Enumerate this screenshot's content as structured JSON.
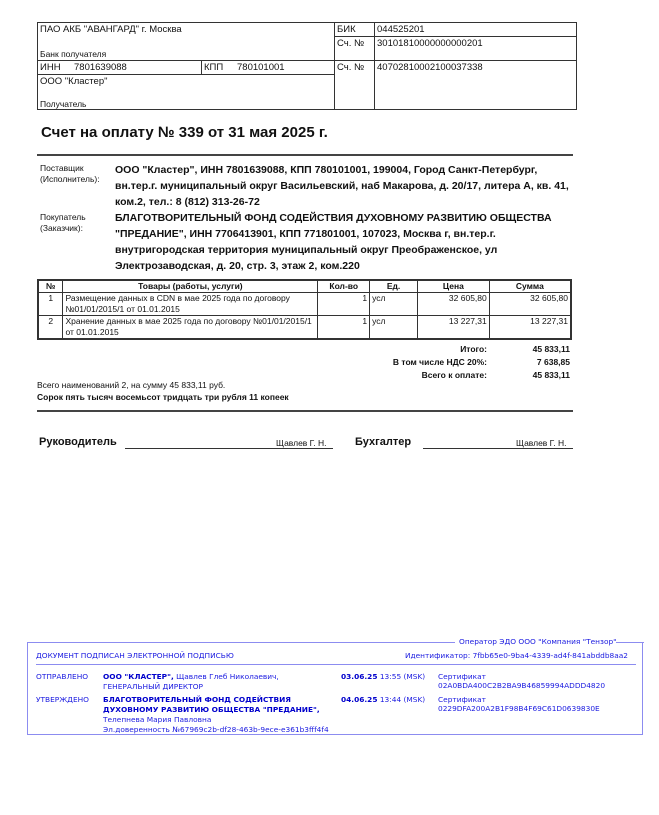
{
  "bank": {
    "bank_name": "ПАО АКБ \"АВАНГАРД\" г. Москва",
    "bank_label": "Банк получателя",
    "bik_label": "БИК",
    "bik": "044525201",
    "corr_label": "Сч. №",
    "corr_account": "30101810000000000201",
    "inn_label": "ИНН",
    "inn": "7801639088",
    "kpp_label": "КПП",
    "kpp": "780101001",
    "acc_label": "Сч. №",
    "account": "40702810002100037338",
    "recipient_name": "ООО \"Кластер\"",
    "recipient_label": "Получатель"
  },
  "title": "Счет на оплату № 339 от 31 мая 2025 г.",
  "supplier": {
    "label": "Поставщик (Исполнитель):",
    "text": "ООО \"Кластер\", ИНН 7801639088, КПП 780101001, 199004, Город Санкт-Петербург, вн.тер.г. муниципальный округ Васильевский, наб Макарова, д. 20/17, литера А, кв. 41, ком.2, тел.: 8 (812) 313-26-72"
  },
  "buyer": {
    "label": "Покупатель (Заказчик):",
    "text": "БЛАГОТВОРИТЕЛЬНЫЙ ФОНД СОДЕЙСТВИЯ ДУХОВНОМУ РАЗВИТИЮ ОБЩЕСТВА \"ПРЕДАНИЕ\", ИНН 7706413901, КПП 771801001, 107023, Москва г, вн.тер.г. внутригородская территория муниципальный округ Преображенское, ул Электрозаводская, д. 20, стр. 3, этаж 2, ком.220"
  },
  "items": {
    "headers": [
      "№",
      "Товары (работы, услуги)",
      "Кол-во",
      "Ед.",
      "Цена",
      "Сумма"
    ],
    "rows": [
      [
        "1",
        "Размещение данных в CDN в мае 2025 года по договору №01/01/2015/1 от 01.01.2015",
        "1",
        "усл",
        "32 605,80",
        "32 605,80"
      ],
      [
        "2",
        "Хранение данных в мае 2025 года по договору №01/01/2015/1 от 01.01.2015",
        "1",
        "усл",
        "13 227,31",
        "13 227,31"
      ]
    ]
  },
  "totals": {
    "total_label": "Итого:",
    "total": "45 833,11",
    "vat_label": "В том числе НДС 20%:",
    "vat": "7 638,85",
    "due_label": "Всего к оплате:",
    "due": "45 833,11"
  },
  "summary": "Всего наименований 2, на сумму 45 833,11 руб.",
  "amount_words": "Сорок пять тысяч восемьсот тридцать три рубля 11 копеек",
  "signatures": {
    "head_label": "Руководитель",
    "head_name": "Щавлев Г. Н.",
    "accountant_label": "Бухгалтер",
    "accountant_name": "Щавлев Г. Н."
  },
  "edo": {
    "border_color": "#8c8cf0",
    "text_color": "#1a1ae0",
    "operator": "Оператор ЭДО ООО \"Компания \"Тензор\"",
    "heading": "ДОКУМЕНТ ПОДПИСАН ЭЛЕКТРОННОЙ ПОДПИСЬЮ",
    "identifier": "Идентификатор: 7fbb65e0-9ba4-4339-ad4f-841abddb8aa2",
    "sent": {
      "status": "ОТПРАВЛЕНО",
      "org": "ООО \"КЛАСТЕР\",",
      "person": "Щавлев Глеб Николаевич, ГЕНЕРАЛЬНЫЙ ДИРЕКТОР",
      "date": "03.06.25",
      "time": "13:55 (MSK)",
      "certificate": "Сертификат 02A0BDA400C2B2BA9B46859994ADDD4820"
    },
    "approved": {
      "status": "УТВЕРЖДЕНО",
      "org": "БЛАГОТВОРИТЕЛЬНЫЙ ФОНД СОДЕЙСТВИЯ ДУХОВНОМУ РАЗВИТИЮ ОБЩЕСТВА \"ПРЕДАНИЕ\",",
      "person": "Телепнева Мария Павловна",
      "poa": "Эл.доверенность №67969c2b-df28-463b-9ece-e361b3fff4f4",
      "date": "04.06.25",
      "time": "13:44 (MSK)",
      "certificate": "Сертификат 0229DFA200A2B1F98B4F69C61D0639830E"
    }
  }
}
